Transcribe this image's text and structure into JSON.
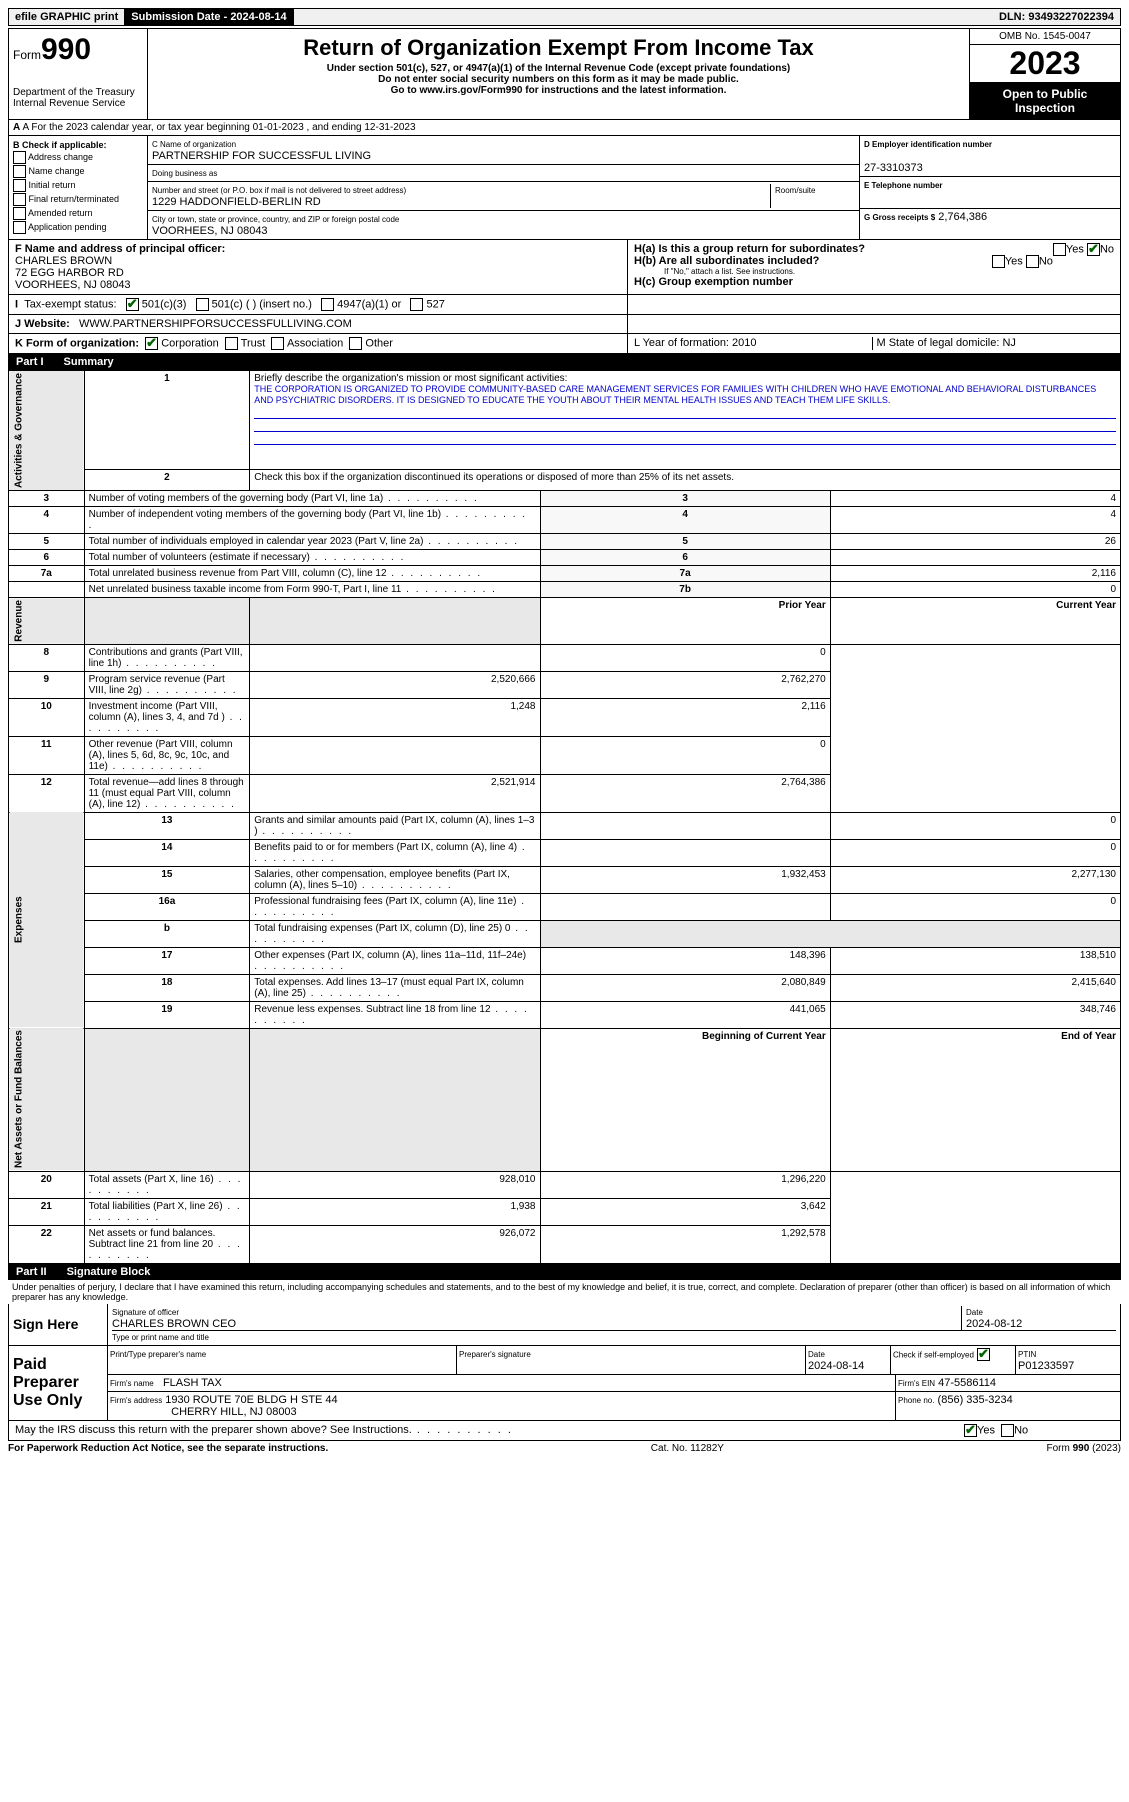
{
  "top": {
    "efile": "efile GRAPHIC print",
    "subDate": "Submission Date - 2024-08-14",
    "dln": "DLN: 93493227022394"
  },
  "header": {
    "formWord": "Form",
    "formNum": "990",
    "title": "Return of Organization Exempt From Income Tax",
    "sub1": "Under section 501(c), 527, or 4947(a)(1) of the Internal Revenue Code (except private foundations)",
    "sub2": "Do not enter social security numbers on this form as it may be made public.",
    "sub3": "Go to www.irs.gov/Form990 for instructions and the latest information.",
    "omb": "OMB No. 1545-0047",
    "year": "2023",
    "open": "Open to Public Inspection",
    "dept": "Department of the Treasury Internal Revenue Service"
  },
  "rowA": "A For the 2023 calendar year, or tax year beginning 01-01-2023   , and ending 12-31-2023",
  "colB": {
    "title": "B Check if applicable:",
    "opts": [
      "Address change",
      "Name change",
      "Initial return",
      "Final return/terminated",
      "Amended return",
      "Application pending"
    ]
  },
  "colC": {
    "nameLabel": "C Name of organization",
    "name": "PARTNERSHIP FOR SUCCESSFUL LIVING",
    "dba": "Doing business as",
    "addrLabel": "Number and street (or P.O. box if mail is not delivered to street address)",
    "addr": "1229 HADDONFIELD-BERLIN RD",
    "room": "Room/suite",
    "cityLabel": "City or town, state or province, country, and ZIP or foreign postal code",
    "city": "VOORHEES, NJ  08043"
  },
  "colD": {
    "einLabel": "D Employer identification number",
    "ein": "27-3310373",
    "telLabel": "E Telephone number",
    "grossLabel": "G Gross receipts $",
    "gross": "2,764,386"
  },
  "rowF": {
    "label": "F Name and address of principal officer:",
    "name": "CHARLES BROWN",
    "addr1": "72 EGG HARBOR RD",
    "addr2": "VOORHEES, NJ  08043"
  },
  "rowH": {
    "ha": "H(a)  Is this a group return for subordinates?",
    "hb": "H(b)  Are all subordinates included?",
    "hbNote": "If \"No,\" attach a list. See instructions.",
    "hc": "H(c)  Group exemption number"
  },
  "rowI": {
    "label": "Tax-exempt status:",
    "opts": [
      "501(c)(3)",
      "501(c) (  ) (insert no.)",
      "4947(a)(1) or",
      "527"
    ]
  },
  "rowJ": {
    "label": "J  Website:",
    "val": "WWW.PARTNERSHIPFORSUCCESSFULLIVING.COM"
  },
  "rowK": {
    "label": "K Form of organization:",
    "opts": [
      "Corporation",
      "Trust",
      "Association",
      "Other"
    ]
  },
  "rowL": "L Year of formation: 2010",
  "rowM": "M State of legal domicile: NJ",
  "part1": {
    "header": "Part I",
    "title": "Summary",
    "l1": "Briefly describe the organization's mission or most significant activities:",
    "mission": "THE CORPORATION IS ORGANIZED TO PROVIDE COMMUNITY-BASED CARE MANAGEMENT SERVICES FOR FAMILIES WITH CHILDREN WHO HAVE EMOTIONAL AND BEHAVIORAL DISTURBANCES AND PSYCHIATRIC DISORDERS. IT IS DESIGNED TO EDUCATE THE YOUTH ABOUT THEIR MENTAL HEALTH ISSUES AND TEACH THEM LIFE SKILLS.",
    "l2": "Check this box      if the organization discontinued its operations or disposed of more than 25% of its net assets.",
    "sideA": "Activities & Governance",
    "sideR": "Revenue",
    "sideE": "Expenses",
    "sideN": "Net Assets or Fund Balances",
    "priorYear": "Prior Year",
    "currentYear": "Current Year",
    "begYear": "Beginning of Current Year",
    "endYear": "End of Year",
    "lines_gov": [
      {
        "n": "3",
        "t": "Number of voting members of the governing body (Part VI, line 1a)",
        "b": "3",
        "v": "4"
      },
      {
        "n": "4",
        "t": "Number of independent voting members of the governing body (Part VI, line 1b)",
        "b": "4",
        "v": "4"
      },
      {
        "n": "5",
        "t": "Total number of individuals employed in calendar year 2023 (Part V, line 2a)",
        "b": "5",
        "v": "26"
      },
      {
        "n": "6",
        "t": "Total number of volunteers (estimate if necessary)",
        "b": "6",
        "v": ""
      },
      {
        "n": "7a",
        "t": "Total unrelated business revenue from Part VIII, column (C), line 12",
        "b": "7a",
        "v": "2,116"
      },
      {
        "n": "",
        "t": "Net unrelated business taxable income from Form 990-T, Part I, line 11",
        "b": "7b",
        "v": "0"
      }
    ],
    "lines_rev": [
      {
        "n": "8",
        "t": "Contributions and grants (Part VIII, line 1h)",
        "p": "",
        "c": "0"
      },
      {
        "n": "9",
        "t": "Program service revenue (Part VIII, line 2g)",
        "p": "2,520,666",
        "c": "2,762,270"
      },
      {
        "n": "10",
        "t": "Investment income (Part VIII, column (A), lines 3, 4, and 7d )",
        "p": "1,248",
        "c": "2,116"
      },
      {
        "n": "11",
        "t": "Other revenue (Part VIII, column (A), lines 5, 6d, 8c, 9c, 10c, and 11e)",
        "p": "",
        "c": "0"
      },
      {
        "n": "12",
        "t": "Total revenue—add lines 8 through 11 (must equal Part VIII, column (A), line 12)",
        "p": "2,521,914",
        "c": "2,764,386"
      }
    ],
    "lines_exp": [
      {
        "n": "13",
        "t": "Grants and similar amounts paid (Part IX, column (A), lines 1–3 )",
        "p": "",
        "c": "0"
      },
      {
        "n": "14",
        "t": "Benefits paid to or for members (Part IX, column (A), line 4)",
        "p": "",
        "c": "0"
      },
      {
        "n": "15",
        "t": "Salaries, other compensation, employee benefits (Part IX, column (A), lines 5–10)",
        "p": "1,932,453",
        "c": "2,277,130"
      },
      {
        "n": "16a",
        "t": "Professional fundraising fees (Part IX, column (A), line 11e)",
        "p": "",
        "c": "0"
      },
      {
        "n": "b",
        "t": "Total fundraising expenses (Part IX, column (D), line 25) 0",
        "p": "-",
        "c": "-"
      },
      {
        "n": "17",
        "t": "Other expenses (Part IX, column (A), lines 11a–11d, 11f–24e)",
        "p": "148,396",
        "c": "138,510"
      },
      {
        "n": "18",
        "t": "Total expenses. Add lines 13–17 (must equal Part IX, column (A), line 25)",
        "p": "2,080,849",
        "c": "2,415,640"
      },
      {
        "n": "19",
        "t": "Revenue less expenses. Subtract line 18 from line 12",
        "p": "441,065",
        "c": "348,746"
      }
    ],
    "lines_net": [
      {
        "n": "20",
        "t": "Total assets (Part X, line 16)",
        "p": "928,010",
        "c": "1,296,220"
      },
      {
        "n": "21",
        "t": "Total liabilities (Part X, line 26)",
        "p": "1,938",
        "c": "3,642"
      },
      {
        "n": "22",
        "t": "Net assets or fund balances. Subtract line 21 from line 20",
        "p": "926,072",
        "c": "1,292,578"
      }
    ]
  },
  "part2": {
    "header": "Part II",
    "title": "Signature Block",
    "perjury": "Under penalties of perjury, I declare that I have examined this return, including accompanying schedules and statements, and to the best of my knowledge and belief, it is true, correct, and complete. Declaration of preparer (other than officer) is based on all information of which preparer has any knowledge."
  },
  "sign": {
    "here": "Sign Here",
    "sigOff": "Signature of officer",
    "name": "CHARLES BROWN CEO",
    "typeName": "Type or print name and title",
    "date": "Date",
    "dateVal": "2024-08-12"
  },
  "paid": {
    "label": "Paid Preparer Use Only",
    "ptName": "Print/Type preparer's name",
    "pSig": "Preparer's signature",
    "pDate": "Date",
    "pDateVal": "2024-08-14",
    "check": "Check          if self-employed",
    "ptin": "PTIN",
    "ptinVal": "P01233597",
    "firmName": "Firm's name",
    "firmNameVal": "FLASH TAX",
    "firmEin": "Firm's EIN",
    "firmEinVal": "47-5586114",
    "firmAddr": "Firm's address",
    "firmAddrVal1": "1930 ROUTE 70E BLDG H STE 44",
    "firmAddrVal2": "CHERRY HILL, NJ  08003",
    "phone": "Phone no.",
    "phoneVal": "(856) 335-3234"
  },
  "discuss": "May the IRS discuss this return with the preparer shown above? See Instructions.",
  "footer": {
    "left": "For Paperwork Reduction Act Notice, see the separate instructions.",
    "mid": "Cat. No. 11282Y",
    "right": "Form 990 (2023)"
  },
  "yesNo": {
    "yes": "Yes",
    "no": "No"
  }
}
